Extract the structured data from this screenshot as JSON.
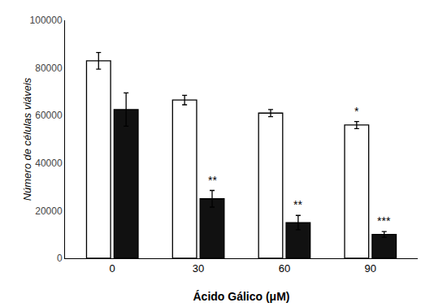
{
  "chart_data": {
    "type": "bar",
    "xlabel": "Ácido Gálico (μM)",
    "ylabel": "Número de células viáveis",
    "categories": [
      "0",
      "30",
      "60",
      "90"
    ],
    "series": [
      {
        "color": "#ffffff",
        "values": [
          83000,
          66500,
          61000,
          56000
        ],
        "errors": [
          3500,
          2000,
          1500,
          1500
        ],
        "significance": [
          null,
          null,
          null,
          "*"
        ]
      },
      {
        "color": "#111111",
        "values": [
          62500,
          25000,
          15000,
          10000
        ],
        "errors": [
          7000,
          3500,
          3000,
          1200
        ],
        "significance": [
          null,
          "**",
          "**",
          "***"
        ]
      }
    ],
    "ylim": [
      0,
      100000
    ],
    "yticks": [
      0,
      20000,
      40000,
      60000,
      80000,
      100000
    ],
    "grid": false
  }
}
